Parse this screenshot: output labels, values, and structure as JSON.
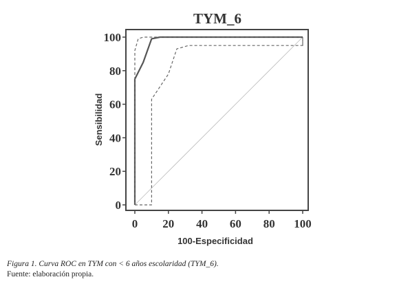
{
  "chart_data": {
    "type": "line",
    "title": "TYM_6",
    "xlabel": "100-Especificidad",
    "ylabel": "Sensibilidad",
    "xlim": [
      0,
      100
    ],
    "ylim": [
      0,
      100
    ],
    "xticks": [
      "0",
      "20",
      "40",
      "60",
      "80",
      "100"
    ],
    "yticks": [
      "0",
      "20",
      "40",
      "60",
      "80",
      "100"
    ],
    "grid": false,
    "legend": "none",
    "series": [
      {
        "style": "solid",
        "color": "#555555",
        "points": [
          [
            0,
            0
          ],
          [
            0,
            75
          ],
          [
            5,
            85
          ],
          [
            10,
            99
          ],
          [
            15,
            100
          ],
          [
            100,
            100
          ]
        ]
      },
      {
        "style": "dashed",
        "color": "#666666",
        "points": [
          [
            0,
            0
          ],
          [
            0,
            92
          ],
          [
            2,
            99
          ],
          [
            5,
            100
          ],
          [
            100,
            100
          ],
          [
            100,
            95
          ]
        ]
      },
      {
        "style": "dashed",
        "color": "#666666",
        "points": [
          [
            0,
            0
          ],
          [
            10,
            0
          ],
          [
            10,
            63
          ],
          [
            20,
            78
          ],
          [
            25,
            93
          ],
          [
            32,
            95
          ],
          [
            100,
            95
          ],
          [
            100,
            100
          ]
        ]
      },
      {
        "style": "reference",
        "color": "#bbbbbb",
        "points": [
          [
            0,
            0
          ],
          [
            100,
            100
          ]
        ]
      }
    ]
  },
  "caption": {
    "figure": "Figura 1. Curva ROC en TYM con < 6 años escolaridad (TYM_6).",
    "source": "Fuente: elaboración propia."
  }
}
